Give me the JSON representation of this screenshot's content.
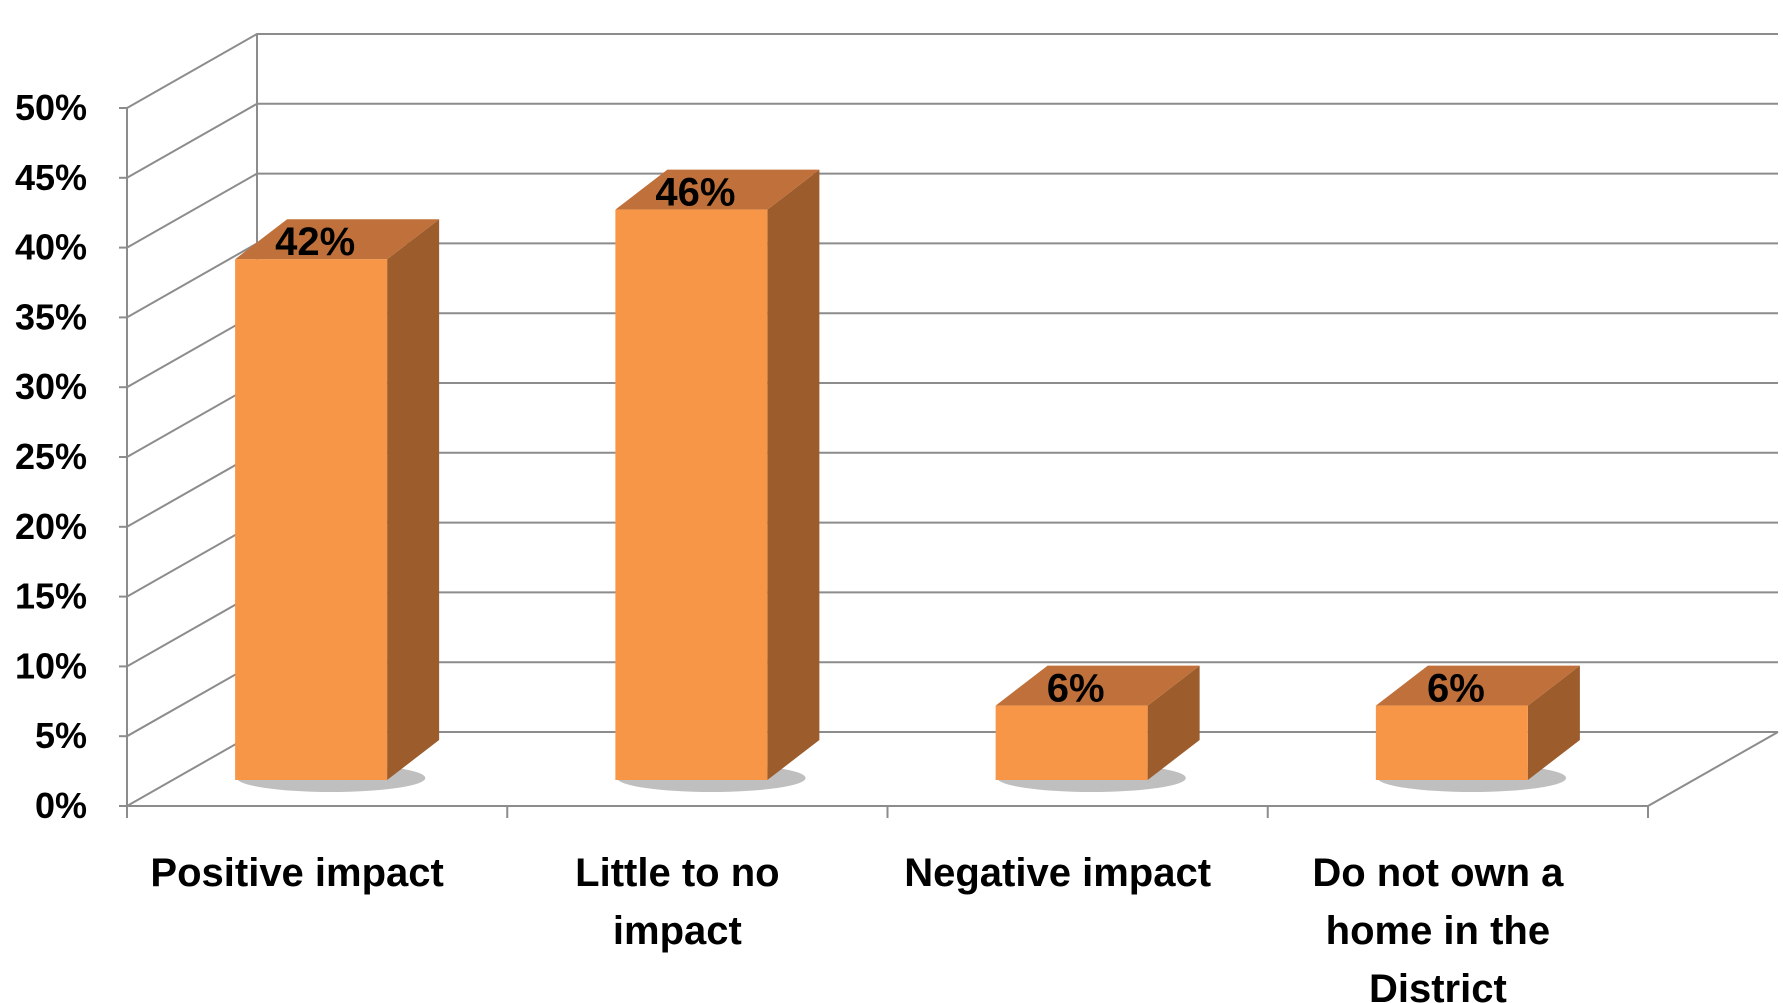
{
  "chart_data": {
    "type": "bar",
    "style": "3d-column",
    "categories": [
      [
        "Positive impact"
      ],
      [
        "Little to no",
        "impact"
      ],
      [
        "Negative impact"
      ],
      [
        "Do not own a",
        "home in the",
        "District"
      ]
    ],
    "values": [
      42,
      46,
      6,
      6
    ],
    "data_labels": [
      "42%",
      "46%",
      "6%",
      "6%"
    ],
    "title": "",
    "xlabel": "",
    "ylabel": "",
    "ylim": [
      0,
      50
    ],
    "y_ticks": [
      "0%",
      "5%",
      "10%",
      "15%",
      "20%",
      "25%",
      "30%",
      "35%",
      "40%",
      "45%",
      "50%"
    ],
    "grid": true,
    "legend": "none",
    "colors": {
      "bar_front": "#F79646",
      "bar_top": "#C0703A",
      "bar_side": "#9C5C2C",
      "grid": "#8C8C8C",
      "text": "#000000"
    }
  }
}
